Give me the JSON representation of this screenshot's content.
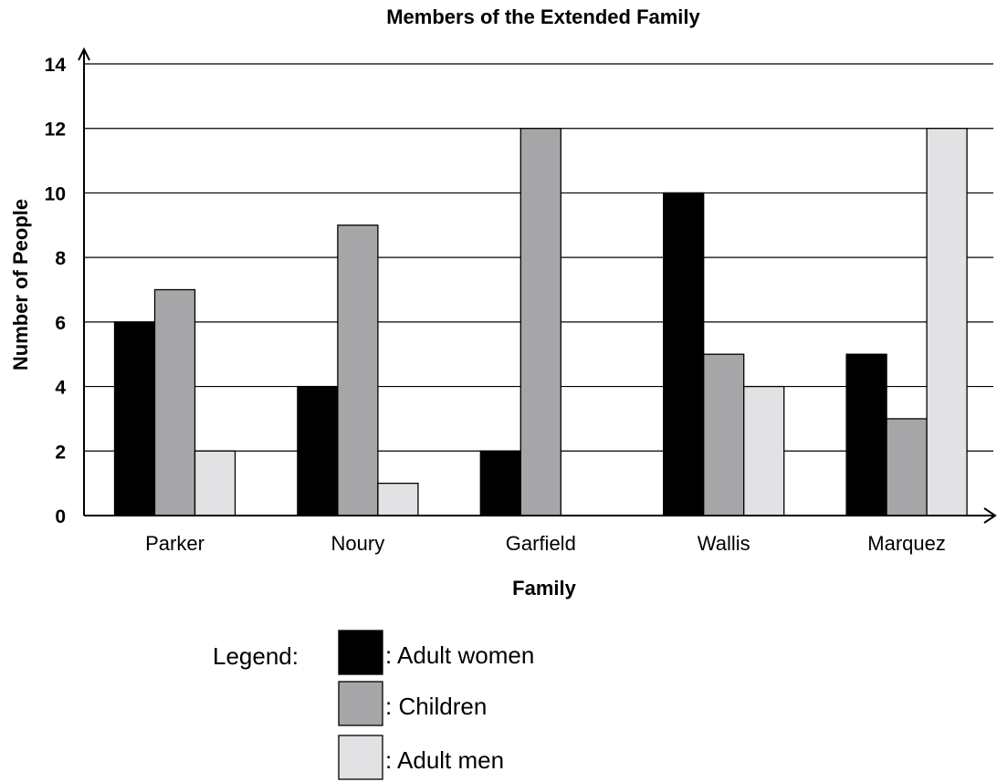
{
  "chart_data": {
    "type": "bar",
    "title": "Members of the Extended Family",
    "xlabel": "Family",
    "ylabel": "Number of People",
    "categories": [
      "Parker",
      "Noury",
      "Garfield",
      "Wallis",
      "Marquez"
    ],
    "series": [
      {
        "name": "Adult women",
        "values": [
          6,
          4,
          2,
          10,
          5
        ],
        "color": "#000000"
      },
      {
        "name": "Children",
        "values": [
          7,
          9,
          12,
          5,
          3
        ],
        "color": "#a6a6a8"
      },
      {
        "name": "Adult men",
        "values": [
          2,
          1,
          0,
          4,
          12
        ],
        "color": "#e2e2e4"
      }
    ],
    "ylim": [
      0,
      14
    ],
    "yticks": [
      0,
      2,
      4,
      6,
      8,
      10,
      12,
      14
    ],
    "grid": true,
    "legend_title": "Legend:",
    "legend_separator": ": ",
    "legend_position": "bottom"
  }
}
